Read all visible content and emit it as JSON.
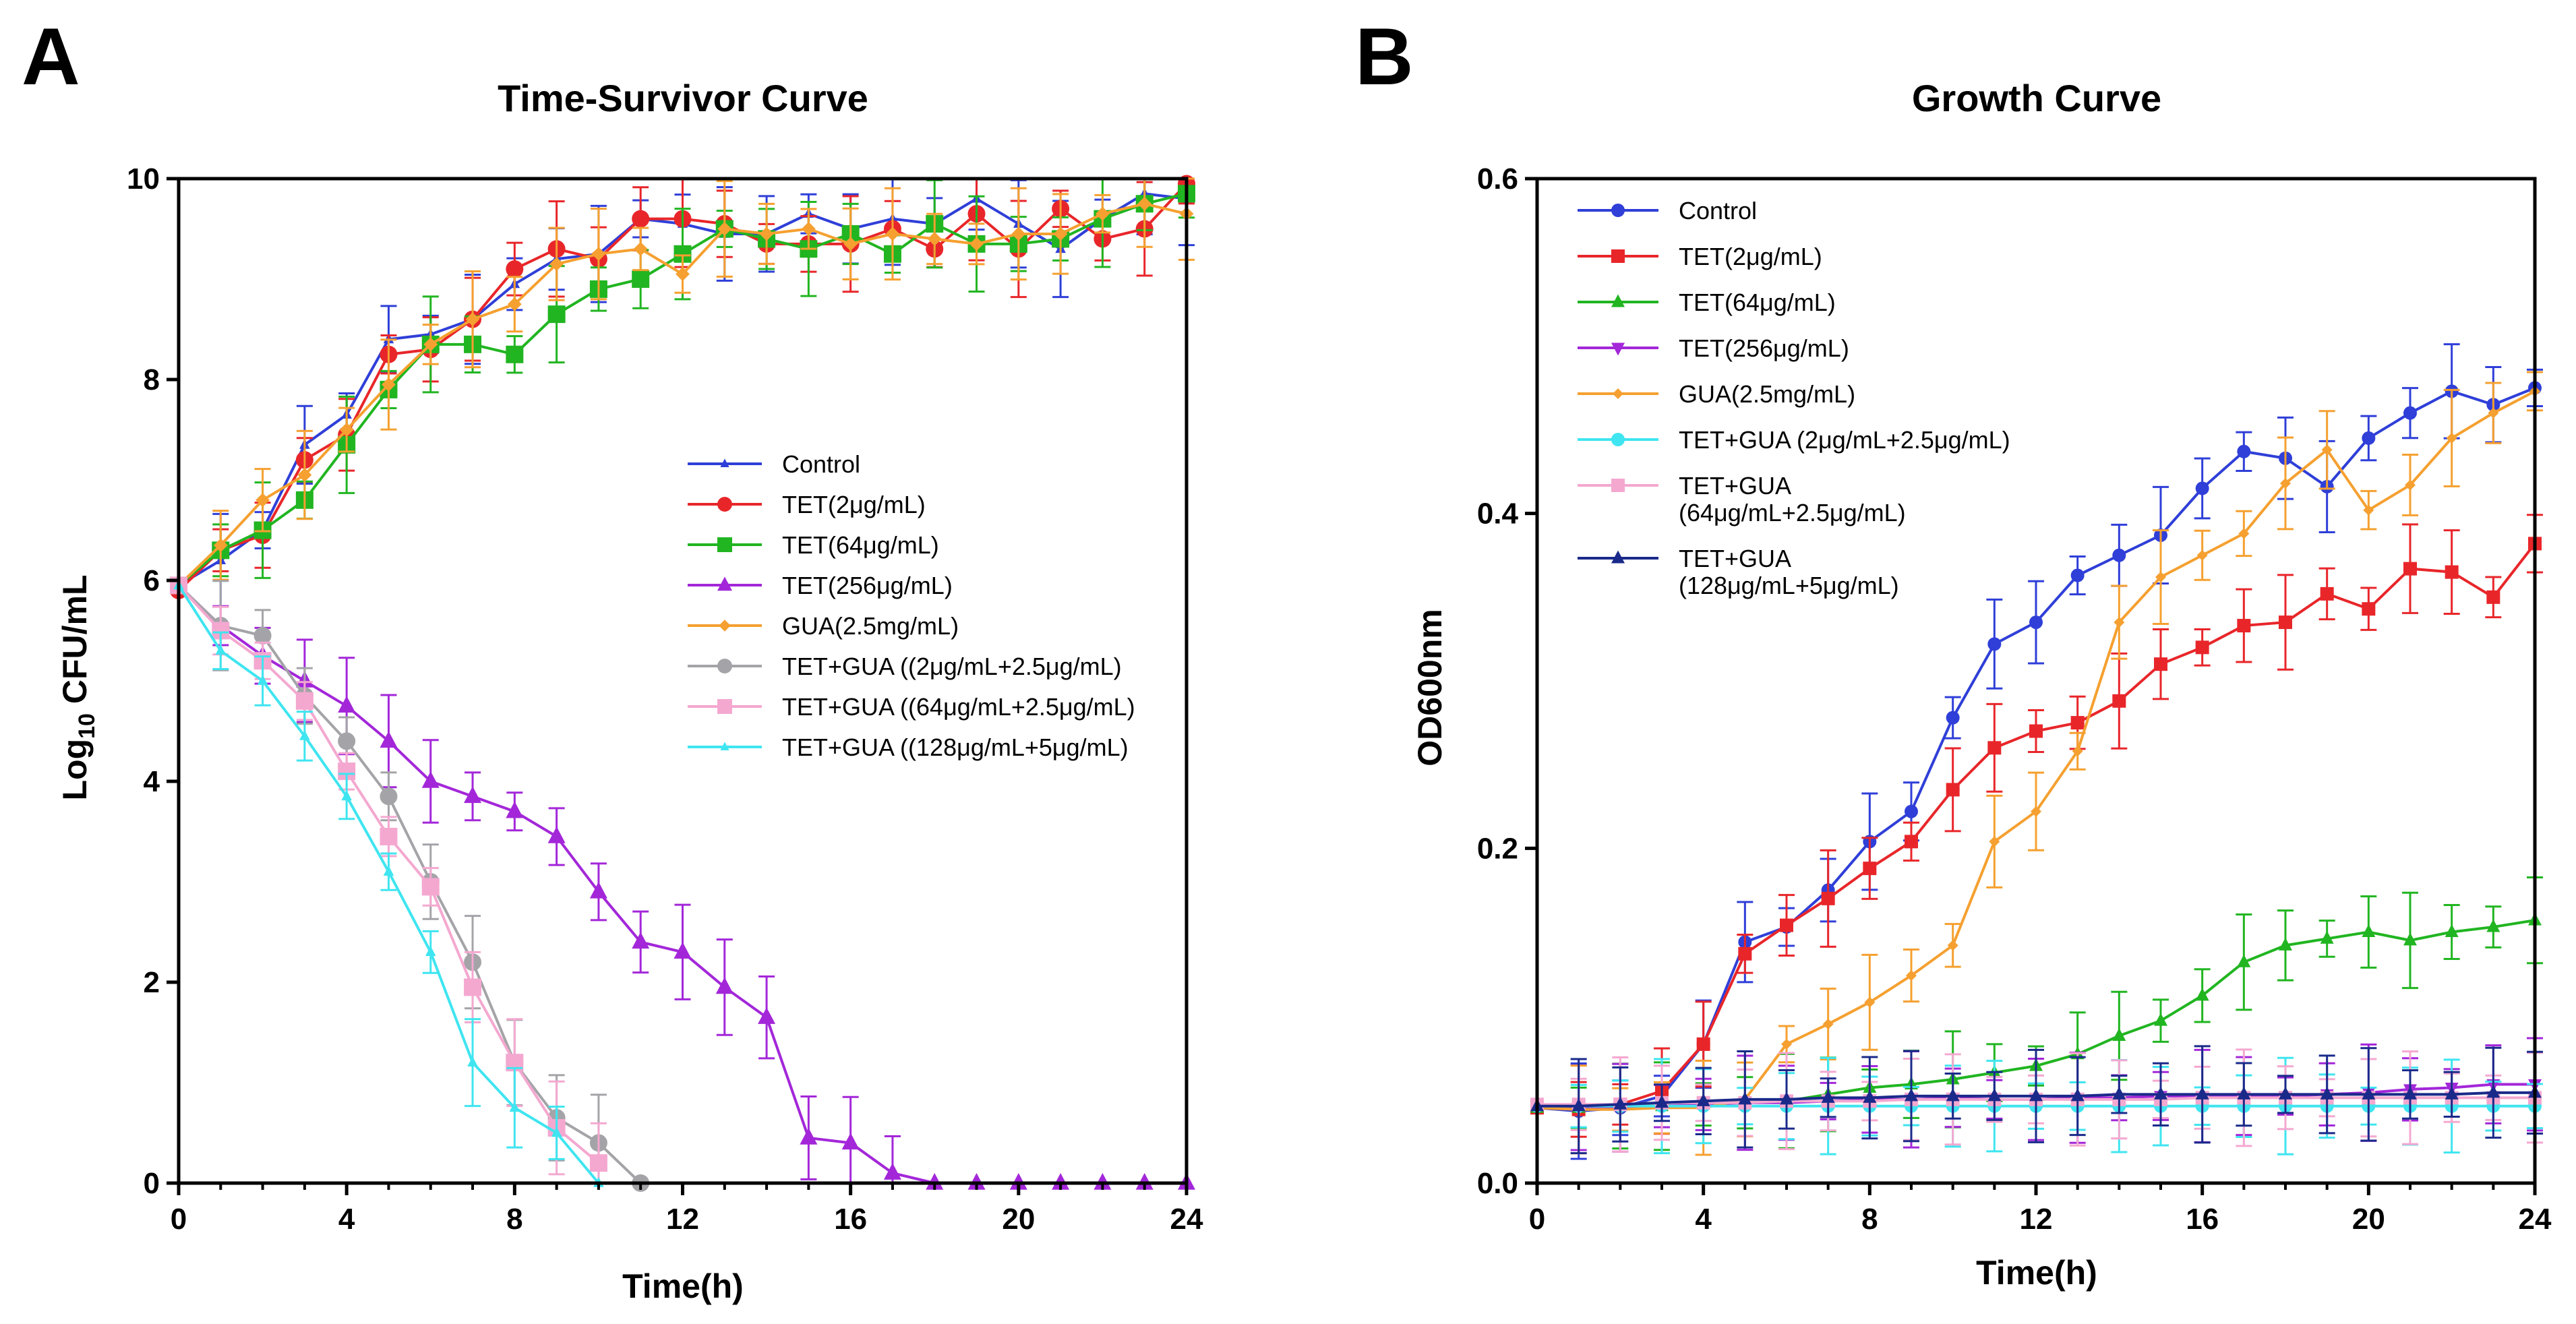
{
  "figure": {
    "panel_labels": [
      "A",
      "B"
    ]
  },
  "chart_data": [
    {
      "panel": "A",
      "type": "line",
      "title": "Time-Survivor Curve",
      "xlabel": "Time(h)",
      "ylabel_main": "Log",
      "ylabel_sub": "10",
      "ylabel_rest": " CFU/mL",
      "xlim": [
        0,
        24
      ],
      "ylim": [
        0,
        10
      ],
      "xticks": [
        0,
        4,
        8,
        12,
        16,
        20,
        24
      ],
      "yticks": [
        0,
        2,
        4,
        6,
        8,
        10
      ],
      "grid": false,
      "legend_position": "center-right",
      "series": [
        {
          "name": "Control",
          "color": "#2f3fd8",
          "marker": "smalltri",
          "x": [
            0,
            1,
            2,
            3,
            4,
            5,
            6,
            7,
            8,
            9,
            10,
            11,
            12,
            13,
            14,
            15,
            16,
            17,
            18,
            19,
            20,
            21,
            22,
            23,
            24
          ],
          "y": [
            5.95,
            6.2,
            6.5,
            7.35,
            7.65,
            8.4,
            8.45,
            8.6,
            8.95,
            9.2,
            9.25,
            9.6,
            9.55,
            9.45,
            9.45,
            9.65,
            9.5,
            9.6,
            9.55,
            9.8,
            9.55,
            9.3,
            9.6,
            9.85,
            9.8
          ]
        },
        {
          "name": "TET(2μg/mL)",
          "color": "#e8262a",
          "marker": "circle",
          "x": [
            0,
            1,
            2,
            3,
            4,
            5,
            6,
            7,
            8,
            9,
            10,
            11,
            12,
            13,
            14,
            15,
            16,
            17,
            18,
            19,
            20,
            21,
            22,
            23,
            24
          ],
          "y": [
            5.9,
            6.3,
            6.45,
            7.2,
            7.45,
            8.25,
            8.3,
            8.6,
            9.1,
            9.3,
            9.2,
            9.6,
            9.6,
            9.55,
            9.35,
            9.35,
            9.35,
            9.5,
            9.3,
            9.65,
            9.3,
            9.7,
            9.4,
            9.5,
            9.95
          ]
        },
        {
          "name": "TET(64μg/mL)",
          "color": "#21b521",
          "marker": "square",
          "x": [
            0,
            1,
            2,
            3,
            4,
            5,
            6,
            7,
            8,
            9,
            10,
            11,
            12,
            13,
            14,
            15,
            16,
            17,
            18,
            19,
            20,
            21,
            22,
            23,
            24
          ],
          "y": [
            5.95,
            6.3,
            6.5,
            6.8,
            7.35,
            7.9,
            8.35,
            8.35,
            8.25,
            8.65,
            8.9,
            9.0,
            9.25,
            9.5,
            9.4,
            9.3,
            9.45,
            9.25,
            9.55,
            9.35,
            9.35,
            9.4,
            9.6,
            9.75,
            9.85
          ]
        },
        {
          "name": "TET(256μg/mL)",
          "color": "#a327d9",
          "marker": "triangle",
          "x": [
            0,
            1,
            2,
            3,
            4,
            5,
            6,
            7,
            8,
            9,
            10,
            11,
            12,
            13,
            14,
            15,
            16,
            17,
            18,
            19,
            20,
            21,
            22,
            23,
            24
          ],
          "y": [
            5.95,
            5.55,
            5.25,
            5.0,
            4.75,
            4.4,
            4.0,
            3.85,
            3.7,
            3.45,
            2.9,
            2.4,
            2.3,
            1.95,
            1.65,
            0.45,
            0.4,
            0.1,
            0,
            0,
            0,
            0,
            0,
            0,
            0
          ]
        },
        {
          "name": "GUA(2.5mg/mL)",
          "color": "#f5a030",
          "marker": "diamond",
          "x": [
            0,
            1,
            2,
            3,
            4,
            5,
            6,
            7,
            8,
            9,
            10,
            11,
            12,
            13,
            14,
            15,
            16,
            17,
            18,
            19,
            20,
            21,
            22,
            23,
            24
          ],
          "y": [
            5.95,
            6.35,
            6.8,
            7.05,
            7.5,
            7.95,
            8.35,
            8.6,
            8.75,
            9.15,
            9.25,
            9.3,
            9.05,
            9.5,
            9.45,
            9.5,
            9.35,
            9.45,
            9.4,
            9.35,
            9.45,
            9.45,
            9.65,
            9.75,
            9.65
          ]
        },
        {
          "name": "TET+GUA ((2μg/mL+2.5μg/mL)",
          "color": "#a4a4a8",
          "marker": "circle",
          "x": [
            0,
            1,
            2,
            3,
            4,
            5,
            6,
            7,
            8,
            9,
            10,
            11
          ],
          "y": [
            5.95,
            5.55,
            5.45,
            4.85,
            4.4,
            3.85,
            3.0,
            2.2,
            1.2,
            0.65,
            0.4,
            0
          ]
        },
        {
          "name": "TET+GUA ((64μg/mL+2.5μg/mL)",
          "color": "#f4a8d0",
          "marker": "square",
          "x": [
            0,
            1,
            2,
            3,
            4,
            5,
            6,
            7,
            8,
            9,
            10
          ],
          "y": [
            5.95,
            5.5,
            5.2,
            4.8,
            4.1,
            3.45,
            2.95,
            1.95,
            1.2,
            0.55,
            0.2
          ]
        },
        {
          "name": "TET+GUA ((128μg/mL+5μg/mL)",
          "color": "#3fe5f0",
          "marker": "smalltri",
          "x": [
            0,
            1,
            2,
            3,
            4,
            5,
            6,
            7,
            8,
            9,
            10
          ],
          "y": [
            5.95,
            5.3,
            5.0,
            4.45,
            3.85,
            3.1,
            2.3,
            1.2,
            0.75,
            0.5,
            0
          ]
        }
      ]
    },
    {
      "panel": "B",
      "type": "line",
      "title": "Growth Curve",
      "xlabel": "Time(h)",
      "ylabel": "OD600nm",
      "xlim": [
        0,
        24
      ],
      "ylim": [
        0,
        0.6
      ],
      "xticks": [
        0,
        4,
        8,
        12,
        16,
        20,
        24
      ],
      "yticks": [
        0.0,
        0.2,
        0.4,
        0.6
      ],
      "ytick_labels": [
        "0.0",
        "0.2",
        "0.4",
        "0.6"
      ],
      "grid": false,
      "legend_position": "top-left",
      "series": [
        {
          "name": "Control",
          "color": "#2f3fd8",
          "marker": "circle",
          "x": [
            0,
            1,
            2,
            3,
            4,
            5,
            6,
            7,
            8,
            9,
            10,
            11,
            12,
            13,
            14,
            15,
            16,
            17,
            18,
            19,
            20,
            21,
            22,
            23,
            24
          ],
          "y": [
            0.045,
            0.043,
            0.045,
            0.052,
            0.083,
            0.144,
            0.153,
            0.175,
            0.204,
            0.222,
            0.278,
            0.322,
            0.335,
            0.363,
            0.375,
            0.387,
            0.415,
            0.437,
            0.433,
            0.416,
            0.445,
            0.46,
            0.473,
            0.465,
            0.475
          ]
        },
        {
          "name": "TET(2μg/mL)",
          "color": "#e8262a",
          "marker": "square",
          "x": [
            0,
            1,
            2,
            3,
            4,
            5,
            6,
            7,
            8,
            9,
            10,
            11,
            12,
            13,
            14,
            15,
            16,
            17,
            18,
            19,
            20,
            21,
            22,
            23,
            24
          ],
          "y": [
            0.045,
            0.044,
            0.047,
            0.055,
            0.083,
            0.137,
            0.154,
            0.17,
            0.188,
            0.204,
            0.235,
            0.26,
            0.27,
            0.275,
            0.288,
            0.31,
            0.32,
            0.333,
            0.335,
            0.352,
            0.343,
            0.367,
            0.365,
            0.35,
            0.382
          ]
        },
        {
          "name": "TET(64μg/mL)",
          "color": "#21b521",
          "marker": "triangle",
          "x": [
            0,
            1,
            2,
            3,
            4,
            5,
            6,
            7,
            8,
            9,
            10,
            11,
            12,
            13,
            14,
            15,
            16,
            17,
            18,
            19,
            20,
            21,
            22,
            23,
            24
          ],
          "y": [
            0.045,
            0.045,
            0.046,
            0.046,
            0.047,
            0.048,
            0.049,
            0.053,
            0.057,
            0.059,
            0.062,
            0.066,
            0.07,
            0.077,
            0.088,
            0.097,
            0.112,
            0.132,
            0.142,
            0.146,
            0.15,
            0.145,
            0.15,
            0.153,
            0.157
          ]
        },
        {
          "name": "TET(256μg/mL)",
          "color": "#a327d9",
          "marker": "invtriangle",
          "x": [
            0,
            1,
            2,
            3,
            4,
            5,
            6,
            7,
            8,
            9,
            10,
            11,
            12,
            13,
            14,
            15,
            16,
            17,
            18,
            19,
            20,
            21,
            22,
            23,
            24
          ],
          "y": [
            0.045,
            0.045,
            0.045,
            0.046,
            0.047,
            0.048,
            0.048,
            0.049,
            0.05,
            0.05,
            0.051,
            0.05,
            0.05,
            0.051,
            0.051,
            0.052,
            0.052,
            0.052,
            0.052,
            0.053,
            0.054,
            0.056,
            0.057,
            0.059,
            0.059
          ]
        },
        {
          "name": "GUA(2.5mg/mL)",
          "color": "#f5a030",
          "marker": "diamond",
          "x": [
            0,
            1,
            2,
            3,
            4,
            5,
            6,
            7,
            8,
            9,
            10,
            11,
            12,
            13,
            14,
            15,
            16,
            17,
            18,
            19,
            20,
            21,
            22,
            23,
            24
          ],
          "y": [
            0.045,
            0.044,
            0.044,
            0.045,
            0.045,
            0.05,
            0.083,
            0.095,
            0.108,
            0.124,
            0.142,
            0.204,
            0.222,
            0.258,
            0.335,
            0.362,
            0.375,
            0.388,
            0.418,
            0.438,
            0.402,
            0.417,
            0.445,
            0.46,
            0.473
          ]
        },
        {
          "name": "TET+GUA (2μg/mL+2.5μg/mL)",
          "color": "#3fe5f0",
          "marker": "circle",
          "x": [
            0,
            1,
            2,
            3,
            4,
            5,
            6,
            7,
            8,
            9,
            10,
            11,
            12,
            13,
            14,
            15,
            16,
            17,
            18,
            19,
            20,
            21,
            22,
            23,
            24
          ],
          "y": [
            0.046,
            0.046,
            0.046,
            0.046,
            0.046,
            0.046,
            0.046,
            0.046,
            0.046,
            0.046,
            0.046,
            0.046,
            0.046,
            0.046,
            0.046,
            0.046,
            0.046,
            0.046,
            0.046,
            0.046,
            0.046,
            0.046,
            0.046,
            0.046,
            0.046
          ]
        },
        {
          "name": "TET+GUA (64μg/mL+2.5μg/mL)",
          "label_lines": [
            "TET+GUA",
            "(64μg/mL+2.5μg/mL)"
          ],
          "color": "#f4a8d0",
          "marker": "square",
          "x": [
            0,
            1,
            2,
            3,
            4,
            5,
            6,
            7,
            8,
            9,
            10,
            11,
            12,
            13,
            14,
            15,
            16,
            17,
            18,
            19,
            20,
            21,
            22,
            23,
            24
          ],
          "y": [
            0.047,
            0.047,
            0.047,
            0.048,
            0.048,
            0.048,
            0.049,
            0.049,
            0.049,
            0.05,
            0.05,
            0.05,
            0.05,
            0.05,
            0.05,
            0.05,
            0.051,
            0.051,
            0.051,
            0.051,
            0.051,
            0.051,
            0.051,
            0.051,
            0.051
          ]
        },
        {
          "name": "TET+GUA (128μg/mL+5μg/mL)",
          "label_lines": [
            "TET+GUA",
            "(128μg/mL+5μg/mL)"
          ],
          "color": "#1a2a8a",
          "marker": "triangle",
          "x": [
            0,
            1,
            2,
            3,
            4,
            5,
            6,
            7,
            8,
            9,
            10,
            11,
            12,
            13,
            14,
            15,
            16,
            17,
            18,
            19,
            20,
            21,
            22,
            23,
            24
          ],
          "y": [
            0.046,
            0.046,
            0.047,
            0.048,
            0.049,
            0.05,
            0.05,
            0.051,
            0.051,
            0.052,
            0.052,
            0.052,
            0.052,
            0.052,
            0.053,
            0.053,
            0.053,
            0.053,
            0.053,
            0.053,
            0.053,
            0.053,
            0.053,
            0.054,
            0.054
          ]
        }
      ]
    }
  ]
}
